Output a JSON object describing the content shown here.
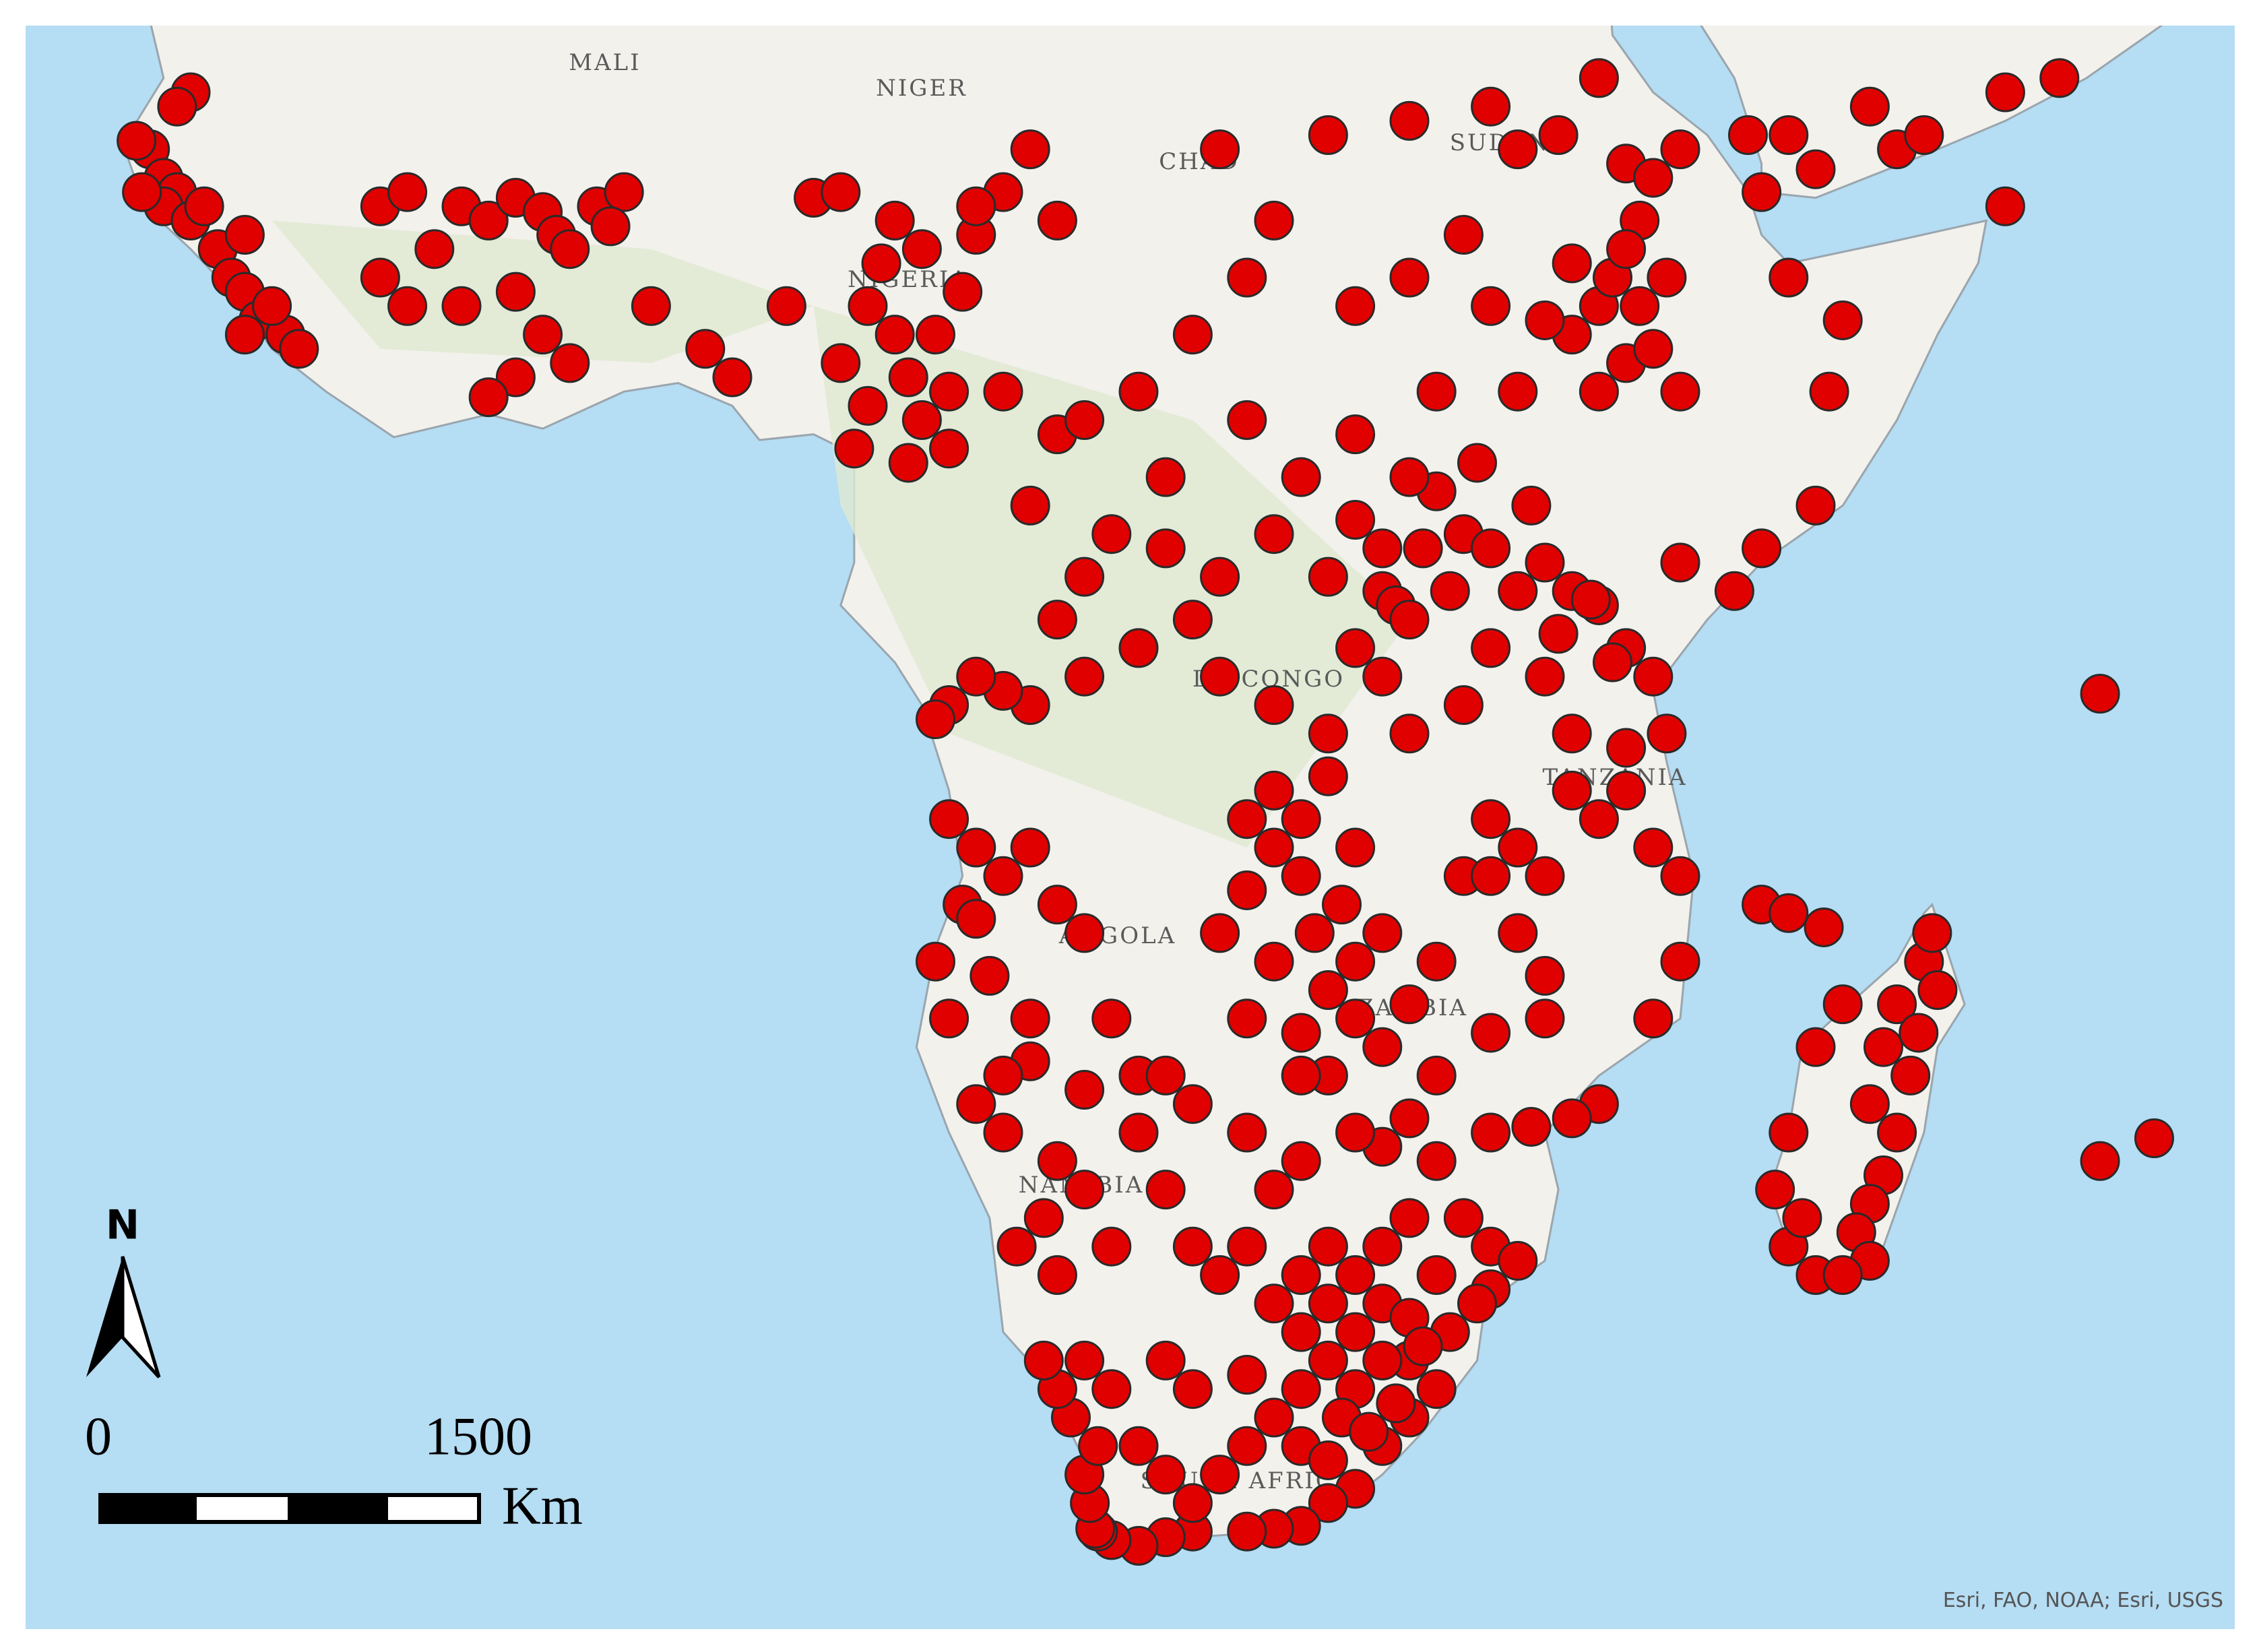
{
  "map": {
    "labels": [
      "MALI",
      "NIGER",
      "CHAD",
      "SUDAN",
      "NIGERIA",
      "DR CONGO",
      "TANZANIA",
      "ANGOLA",
      "ZAMBIA",
      "NAMIBIA",
      "SOUTH AFRICA"
    ],
    "point_color": "#e00000",
    "points": [
      [
        -16.5,
        14.5
      ],
      [
        -16,
        13.5
      ],
      [
        -15.5,
        13
      ],
      [
        -16,
        12.5
      ],
      [
        -15,
        12
      ],
      [
        -14,
        11
      ],
      [
        -13.5,
        10
      ],
      [
        -13,
        9.5
      ],
      [
        -12.5,
        8.5
      ],
      [
        -11.5,
        8
      ],
      [
        -12,
        9
      ],
      [
        -11,
        7.5
      ],
      [
        -13,
        8
      ],
      [
        -15,
        16.5
      ],
      [
        -15.5,
        16
      ],
      [
        -17,
        14.8
      ],
      [
        -16.8,
        13
      ],
      [
        -14.5,
        12.5
      ],
      [
        -13,
        11.5
      ],
      [
        -8,
        12.5
      ],
      [
        -7,
        13
      ],
      [
        -5,
        12.5
      ],
      [
        -4,
        12
      ],
      [
        -3,
        12.8
      ],
      [
        -2,
        12.3
      ],
      [
        -1.5,
        11.5
      ],
      [
        0,
        12.5
      ],
      [
        1,
        13
      ],
      [
        -6,
        11
      ],
      [
        -7,
        9
      ],
      [
        -8,
        10
      ],
      [
        -5,
        9
      ],
      [
        -3,
        9.5
      ],
      [
        -2,
        8
      ],
      [
        -1,
        7
      ],
      [
        -3,
        6.5
      ],
      [
        -4,
        5.8
      ],
      [
        2,
        9
      ],
      [
        4,
        7.5
      ],
      [
        5,
        6.5
      ],
      [
        -1,
        11
      ],
      [
        0.5,
        11.8
      ],
      [
        7,
        9
      ],
      [
        8,
        12.8
      ],
      [
        9,
        13
      ],
      [
        11,
        12
      ],
      [
        12,
        11
      ],
      [
        14,
        11.5
      ],
      [
        15,
        13
      ],
      [
        16,
        14.5
      ],
      [
        17,
        12
      ],
      [
        13.5,
        9.5
      ],
      [
        14,
        12.5
      ],
      [
        10,
        9
      ],
      [
        11,
        8
      ],
      [
        11.5,
        6.5
      ],
      [
        9.5,
        4
      ],
      [
        10,
        5.5
      ],
      [
        12,
        5
      ],
      [
        13,
        4
      ],
      [
        11.5,
        3.5
      ],
      [
        13,
        6
      ],
      [
        15,
        6
      ],
      [
        17,
        4.5
      ],
      [
        18,
        5
      ],
      [
        16,
        2
      ],
      [
        18,
        -0.5
      ],
      [
        20,
        6
      ],
      [
        21,
        3
      ],
      [
        22,
        8
      ],
      [
        10.5,
        10.5
      ],
      [
        9,
        7
      ],
      [
        12.5,
        8
      ],
      [
        25,
        12
      ],
      [
        23,
        14.5
      ],
      [
        27,
        15
      ],
      [
        30,
        15.5
      ],
      [
        34,
        14.5
      ],
      [
        33,
        16
      ],
      [
        35.5,
        15
      ],
      [
        37,
        17
      ],
      [
        38,
        14
      ],
      [
        39,
        13.5
      ],
      [
        40,
        14.5
      ],
      [
        38.5,
        12
      ],
      [
        42.5,
        15
      ],
      [
        43,
        13
      ],
      [
        44,
        15
      ],
      [
        45,
        13.8
      ],
      [
        47,
        16
      ],
      [
        48,
        14.5
      ],
      [
        49,
        15
      ],
      [
        52,
        16.5
      ],
      [
        54,
        17
      ],
      [
        52,
        12.5
      ],
      [
        44,
        10
      ],
      [
        45.5,
        6
      ],
      [
        46,
        8.5
      ],
      [
        45,
        2
      ],
      [
        43,
        0.5
      ],
      [
        42,
        -1
      ],
      [
        40,
        0
      ],
      [
        40,
        6
      ],
      [
        38,
        7
      ],
      [
        37,
        9
      ],
      [
        36,
        8
      ],
      [
        38.5,
        9
      ],
      [
        39,
        7.5
      ],
      [
        37.5,
        10
      ],
      [
        36,
        10.5
      ],
      [
        35,
        8.5
      ],
      [
        34,
        6
      ],
      [
        31,
        6
      ],
      [
        28,
        4.5
      ],
      [
        26,
        3
      ],
      [
        28,
        9
      ],
      [
        30,
        10
      ],
      [
        32,
        11.5
      ],
      [
        33,
        9
      ],
      [
        24,
        10
      ],
      [
        24,
        5
      ],
      [
        38,
        11
      ],
      [
        39.5,
        10
      ],
      [
        37,
        6
      ],
      [
        25,
        1
      ],
      [
        27,
        -0.5
      ],
      [
        29,
        -1
      ],
      [
        29.5,
        -1.5
      ],
      [
        30,
        -2
      ],
      [
        30.5,
        0.5
      ],
      [
        31,
        2.5
      ],
      [
        32,
        1
      ],
      [
        33,
        0.5
      ],
      [
        34,
        -1
      ],
      [
        35,
        0
      ],
      [
        34.5,
        2
      ],
      [
        32.5,
        3.5
      ],
      [
        30,
        3
      ],
      [
        36,
        -1
      ],
      [
        37,
        -1.5
      ],
      [
        36.7,
        -1.3
      ],
      [
        38,
        -3
      ],
      [
        37.5,
        -3.5
      ],
      [
        39,
        -4
      ],
      [
        39.5,
        -6
      ],
      [
        38,
        -6.5
      ],
      [
        36,
        -6
      ],
      [
        35,
        -4
      ],
      [
        33,
        -3
      ],
      [
        32,
        -5
      ],
      [
        30,
        -6
      ],
      [
        29,
        -4
      ],
      [
        28,
        -3
      ],
      [
        27,
        -6
      ],
      [
        25,
        -5
      ],
      [
        23,
        -4
      ],
      [
        22,
        -2
      ],
      [
        20,
        -3
      ],
      [
        18,
        -4
      ],
      [
        16,
        -5
      ],
      [
        15,
        -4.5
      ],
      [
        14,
        -4
      ],
      [
        13,
        -5
      ],
      [
        12.5,
        -5.5
      ],
      [
        17,
        -2
      ],
      [
        19,
        1
      ],
      [
        21,
        0.5
      ],
      [
        23,
        -0.5
      ],
      [
        29,
        0.5
      ],
      [
        28,
        1.5
      ],
      [
        31.5,
        -1
      ],
      [
        35.5,
        -2.5
      ],
      [
        26,
        -9
      ],
      [
        27,
        -7.5
      ],
      [
        25,
        -10
      ],
      [
        24,
        -11.5
      ],
      [
        26,
        -11
      ],
      [
        28,
        -10
      ],
      [
        27.5,
        -12
      ],
      [
        29,
        -13
      ],
      [
        28,
        -14
      ],
      [
        27,
        -15
      ],
      [
        25,
        -14
      ],
      [
        23,
        -13
      ],
      [
        24,
        -16
      ],
      [
        26,
        -16.5
      ],
      [
        28,
        -16
      ],
      [
        29,
        -17
      ],
      [
        30,
        -15.5
      ],
      [
        31,
        -14
      ],
      [
        32,
        -11
      ],
      [
        33,
        -9
      ],
      [
        34,
        -10
      ],
      [
        34,
        -13
      ],
      [
        35,
        -14.5
      ],
      [
        35,
        -16
      ],
      [
        33,
        -16.5
      ],
      [
        33,
        -11
      ],
      [
        35,
        -11
      ],
      [
        36,
        -8
      ],
      [
        37,
        -9
      ],
      [
        38,
        -8
      ],
      [
        39,
        -10
      ],
      [
        40,
        -11
      ],
      [
        40,
        -14
      ],
      [
        39,
        -16
      ],
      [
        25,
        -8
      ],
      [
        24,
        -9
      ],
      [
        26.5,
        -13
      ],
      [
        37,
        -19
      ],
      [
        36,
        -19.5
      ],
      [
        34.5,
        -19.8
      ],
      [
        33,
        -20
      ],
      [
        31,
        -18
      ],
      [
        30,
        -19.5
      ],
      [
        29,
        -20.5
      ],
      [
        31,
        -21
      ],
      [
        32,
        -23
      ],
      [
        33,
        -24
      ],
      [
        34,
        -24.5
      ],
      [
        33,
        -25.5
      ],
      [
        32.5,
        -26
      ],
      [
        31,
        -25
      ],
      [
        31.5,
        -27
      ],
      [
        30,
        -28
      ],
      [
        31,
        -29
      ],
      [
        30,
        -30
      ],
      [
        29,
        -31
      ],
      [
        28,
        -32.5
      ],
      [
        27,
        -33
      ],
      [
        26,
        -33.8
      ],
      [
        25,
        -33.9
      ],
      [
        24,
        -34
      ],
      [
        22,
        -34
      ],
      [
        21,
        -34.2
      ],
      [
        20,
        -34.5
      ],
      [
        19,
        -34.3
      ],
      [
        18.5,
        -34
      ],
      [
        18.4,
        -33.9
      ],
      [
        18.2,
        -33
      ],
      [
        18,
        -32
      ],
      [
        18.5,
        -31
      ],
      [
        17.5,
        -30
      ],
      [
        17,
        -29
      ],
      [
        16.5,
        -28
      ],
      [
        18,
        -28
      ],
      [
        19,
        -29
      ],
      [
        20,
        -31
      ],
      [
        21,
        -32
      ],
      [
        22,
        -33
      ],
      [
        23,
        -32
      ],
      [
        24,
        -31
      ],
      [
        25,
        -30
      ],
      [
        26,
        -29
      ],
      [
        27,
        -28
      ],
      [
        28,
        -27
      ],
      [
        29,
        -26
      ],
      [
        28,
        -25
      ],
      [
        27,
        -24
      ],
      [
        26,
        -25
      ],
      [
        25,
        -26
      ],
      [
        28,
        -29
      ],
      [
        29,
        -28
      ],
      [
        30,
        -26.5
      ],
      [
        29,
        -24
      ],
      [
        30,
        -23
      ],
      [
        27,
        -26
      ],
      [
        26,
        -27
      ],
      [
        27.5,
        -30
      ],
      [
        26,
        -31
      ],
      [
        24,
        -28.5
      ],
      [
        22,
        -29
      ],
      [
        21,
        -28
      ],
      [
        29.5,
        -29.5
      ],
      [
        28.5,
        -30.5
      ],
      [
        27,
        -31.5
      ],
      [
        30.5,
        -27.5
      ],
      [
        23,
        -25
      ],
      [
        24,
        -24
      ],
      [
        25,
        -22
      ],
      [
        26,
        -21
      ],
      [
        24,
        -20
      ],
      [
        22,
        -19
      ],
      [
        20,
        -18
      ],
      [
        18,
        -18.5
      ],
      [
        16,
        -17.5
      ],
      [
        15,
        -18
      ],
      [
        14,
        -19
      ],
      [
        15,
        -20
      ],
      [
        17,
        -21
      ],
      [
        18,
        -22
      ],
      [
        16.5,
        -23
      ],
      [
        15.5,
        -24
      ],
      [
        17,
        -25
      ],
      [
        19,
        -24
      ],
      [
        21,
        -22
      ],
      [
        22,
        -24
      ],
      [
        28,
        -20
      ],
      [
        27,
        -18
      ],
      [
        26,
        -18
      ],
      [
        13,
        -16
      ],
      [
        12.5,
        -14
      ],
      [
        13.5,
        -12
      ],
      [
        14,
        -10
      ],
      [
        13,
        -9
      ],
      [
        15,
        -11
      ],
      [
        16,
        -10
      ],
      [
        17,
        -12
      ],
      [
        18,
        -13
      ],
      [
        14.5,
        -14.5
      ],
      [
        16,
        -16
      ],
      [
        19,
        -16
      ],
      [
        21,
        -18
      ],
      [
        20,
        -20
      ],
      [
        14,
        -12.5
      ],
      [
        47,
        -19
      ],
      [
        47.5,
        -17
      ],
      [
        48,
        -15.5
      ],
      [
        49,
        -14
      ],
      [
        49.3,
        -13
      ],
      [
        49.5,
        -15
      ],
      [
        48.5,
        -18
      ],
      [
        48,
        -20
      ],
      [
        47.5,
        -21.5
      ],
      [
        47,
        -22.5
      ],
      [
        46.5,
        -23.5
      ],
      [
        45,
        -25
      ],
      [
        44,
        -24
      ],
      [
        43.5,
        -22
      ],
      [
        44,
        -20
      ],
      [
        45,
        -17
      ],
      [
        46,
        -15.5
      ],
      [
        47,
        -24.5
      ],
      [
        46,
        -25
      ],
      [
        44.5,
        -23
      ],
      [
        48.8,
        -16.5
      ],
      [
        43,
        -12
      ],
      [
        44,
        -12.3
      ],
      [
        45.3,
        -12.8
      ],
      [
        55.5,
        -21
      ],
      [
        57.5,
        -20.2
      ],
      [
        55.5,
        -4.6
      ]
    ],
    "scale_bar": {
      "start": 0,
      "end": 1500,
      "unit": "Km"
    },
    "north": "N",
    "attribution": "Esri, FAO, NOAA; Esri, USGS"
  }
}
